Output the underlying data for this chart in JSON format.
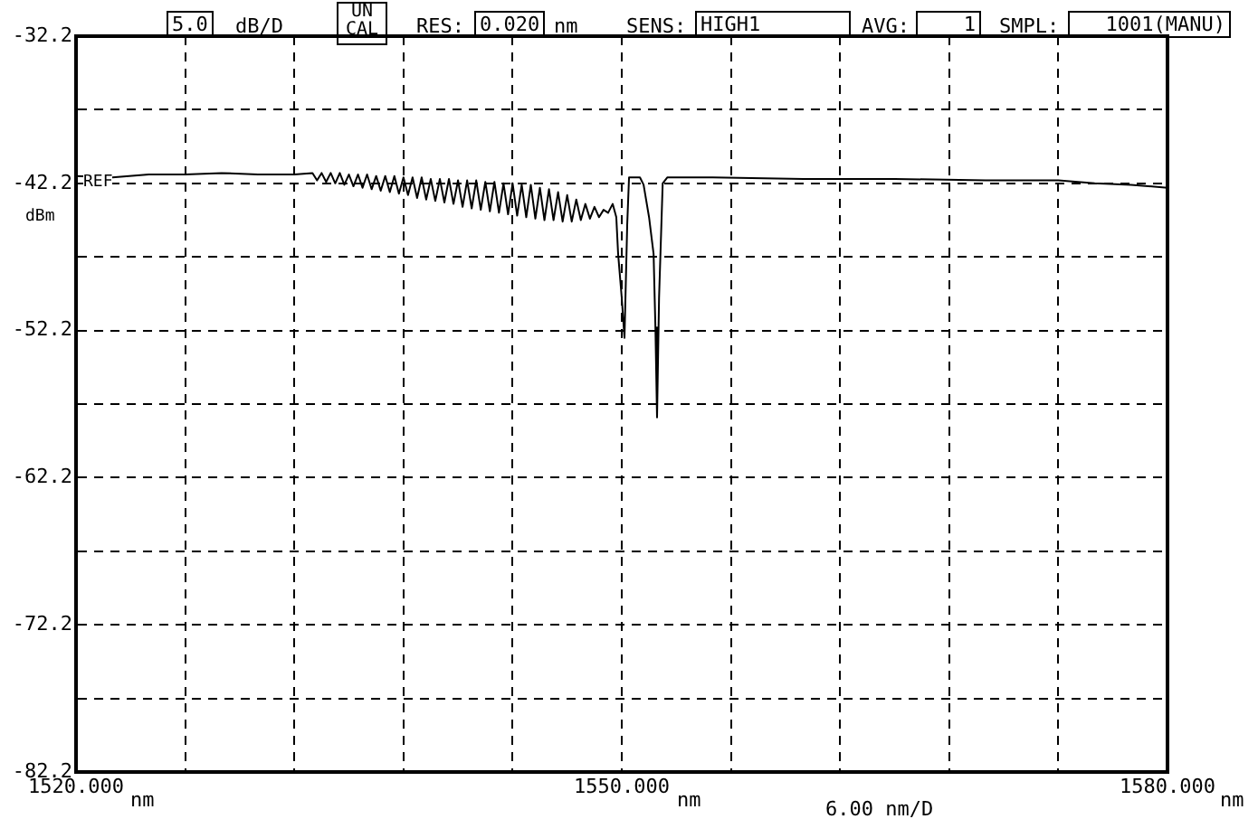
{
  "chart_data": {
    "type": "line",
    "x": [
      1520,
      1522,
      1524,
      1526,
      1528,
      1530,
      1532,
      1533,
      1533.25,
      1533.5,
      1533.75,
      1534,
      1534.25,
      1534.5,
      1534.75,
      1535,
      1535.25,
      1535.5,
      1535.75,
      1536,
      1536.25,
      1536.5,
      1536.75,
      1537,
      1537.25,
      1537.5,
      1537.75,
      1538,
      1538.25,
      1538.5,
      1538.75,
      1539,
      1539.25,
      1539.5,
      1539.75,
      1540,
      1540.25,
      1540.5,
      1540.75,
      1541,
      1541.25,
      1541.5,
      1541.75,
      1542,
      1542.25,
      1542.5,
      1542.75,
      1543,
      1543.25,
      1543.5,
      1543.75,
      1544,
      1544.25,
      1544.5,
      1544.75,
      1545,
      1545.25,
      1545.5,
      1545.75,
      1546,
      1546.25,
      1546.5,
      1546.75,
      1547,
      1547.25,
      1547.5,
      1547.75,
      1548,
      1548.25,
      1548.5,
      1548.75,
      1549,
      1549.25,
      1549.5,
      1549.7,
      1549.8,
      1550,
      1550.15,
      1550.3,
      1550.4,
      1551,
      1551.2,
      1551.5,
      1551.75,
      1551.85,
      1551.94,
      1552.05,
      1552.25,
      1552.5,
      1555,
      1560,
      1565,
      1570,
      1574,
      1576,
      1578,
      1580
    ],
    "series": [
      {
        "color": "#000000",
        "values": [
          -41.7,
          -41.8,
          -41.6,
          -41.6,
          -41.5,
          -41.6,
          -41.6,
          -41.5,
          -42.0,
          -41.5,
          -42.1,
          -41.5,
          -42.2,
          -41.5,
          -42.3,
          -41.6,
          -42.4,
          -41.6,
          -42.5,
          -41.6,
          -42.6,
          -41.7,
          -42.7,
          -41.7,
          -42.8,
          -41.7,
          -42.9,
          -41.8,
          -43.0,
          -41.8,
          -43.2,
          -41.8,
          -43.3,
          -41.9,
          -43.4,
          -41.9,
          -43.5,
          -41.9,
          -43.6,
          -42.0,
          -43.8,
          -42.0,
          -43.9,
          -42.0,
          -44.0,
          -42.1,
          -44.1,
          -42.1,
          -44.2,
          -42.2,
          -44.3,
          -42.2,
          -44.4,
          -42.3,
          -44.5,
          -42.3,
          -44.6,
          -42.5,
          -44.7,
          -42.6,
          -44.7,
          -42.8,
          -44.8,
          -43.0,
          -44.8,
          -43.3,
          -44.7,
          -43.6,
          -44.6,
          -43.8,
          -44.5,
          -44.0,
          -44.2,
          -43.6,
          -44.5,
          -47.0,
          -50.0,
          -52.7,
          -45.0,
          -41.8,
          -41.8,
          -42.3,
          -44.5,
          -47.0,
          -52.0,
          -58.1,
          -50.0,
          -42.2,
          -41.8,
          -41.8,
          -41.9,
          -41.9,
          -42.0,
          -42.0,
          -42.2,
          -42.3,
          -42.5
        ]
      }
    ],
    "xlim": [
      1520,
      1580
    ],
    "xticks": [
      {
        "value": 1520,
        "label": "1520.000"
      },
      {
        "value": 1526,
        "label": null
      },
      {
        "value": 1532,
        "label": null
      },
      {
        "value": 1538,
        "label": null
      },
      {
        "value": 1544,
        "label": null
      },
      {
        "value": 1550,
        "label": "1550.000"
      },
      {
        "value": 1556,
        "label": null
      },
      {
        "value": 1562,
        "label": null
      },
      {
        "value": 1568,
        "label": null
      },
      {
        "value": 1574,
        "label": null
      },
      {
        "value": 1580,
        "label": "1580.000"
      }
    ],
    "ylim": [
      -82.2,
      -32.2
    ],
    "yticks": [
      -82.2,
      {
        "value": -77.2,
        "label": null
      },
      -72.2,
      {
        "value": -67.2,
        "label": null
      },
      -62.2,
      {
        "value": -57.2,
        "label": null
      },
      -52.2,
      {
        "value": -47.2,
        "label": null
      },
      -42.2,
      {
        "value": -37.2,
        "label": null
      },
      -32.2
    ],
    "annotations": [
      "5.0",
      "dB/D",
      "UN CAL",
      "RES:",
      "0.020",
      "nm",
      "SENS:",
      "HIGH1",
      "AVG:",
      "1",
      "SMPL:",
      "1001(MANU)",
      "dBm",
      "nm",
      "nm",
      "6.00 nm/D",
      "REF",
      "nm"
    ],
    "grid": true,
    "legend": false,
    "marker": "none",
    "line_style": "solid"
  }
}
